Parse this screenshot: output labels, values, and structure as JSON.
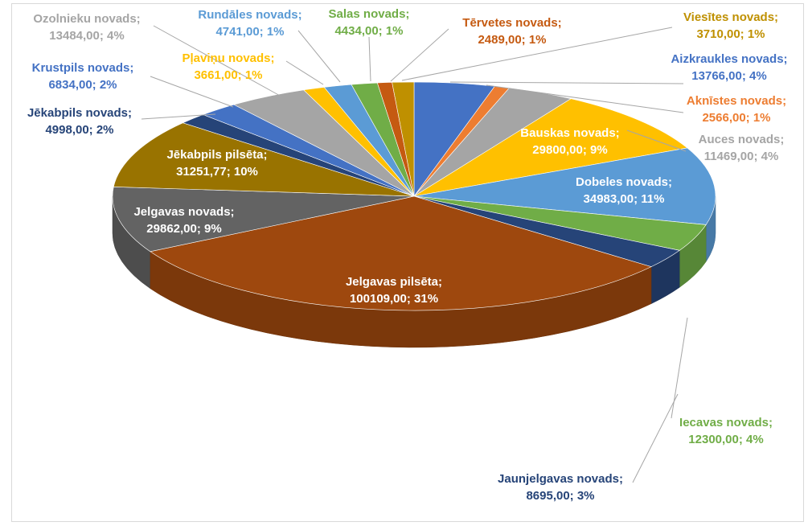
{
  "chart_data": {
    "type": "pie",
    "title": "",
    "slices": [
      {
        "name": "Aizkraukles novads",
        "value": 13766.0,
        "value_text": "13766,00",
        "percent_text": "4%",
        "color": "#4472c4",
        "label_color": "#4472c4"
      },
      {
        "name": "Aknīstes novads",
        "value": 2566.0,
        "value_text": "2566,00",
        "percent_text": "1%",
        "color": "#ed7d31",
        "label_color": "#ed7d31"
      },
      {
        "name": "Auces novads",
        "value": 11469.0,
        "value_text": "11469,00",
        "percent_text": "4%",
        "color": "#a5a5a5",
        "label_color": "#a5a5a5"
      },
      {
        "name": "Bauskas novads",
        "value": 29800.0,
        "value_text": "29800,00",
        "percent_text": "9%",
        "color": "#ffc000",
        "label_color": "#ffffff"
      },
      {
        "name": "Dobeles novads",
        "value": 34983.0,
        "value_text": "34983,00",
        "percent_text": "11%",
        "color": "#5b9bd5",
        "label_color": "#ffffff"
      },
      {
        "name": "Iecavas novads",
        "value": 12300.0,
        "value_text": "12300,00",
        "percent_text": "4%",
        "color": "#70ad47",
        "label_color": "#70ad47"
      },
      {
        "name": "Jaunjelgavas novads",
        "value": 8695.0,
        "value_text": "8695,00",
        "percent_text": "3%",
        "color": "#264478",
        "label_color": "#264478"
      },
      {
        "name": "Jelgavas pilsēta",
        "value": 100109.0,
        "value_text": "100109,00",
        "percent_text": "31%",
        "color": "#9e480e",
        "label_color": "#ffffff"
      },
      {
        "name": "Jelgavas novads",
        "value": 29862.0,
        "value_text": "29862,00",
        "percent_text": "9%",
        "color": "#636363",
        "label_color": "#ffffff"
      },
      {
        "name": "Jēkabpils pilsēta",
        "value": 31251.77,
        "value_text": "31251,77",
        "percent_text": "10%",
        "color": "#997300",
        "label_color": "#ffffff"
      },
      {
        "name": "Jēkabpils novads",
        "value": 4998.0,
        "value_text": "4998,00",
        "percent_text": "2%",
        "color": "#264478",
        "label_color": "#264478"
      },
      {
        "name": "Krustpils novads",
        "value": 6834.0,
        "value_text": "6834,00",
        "percent_text": "2%",
        "color": "#4472c4",
        "label_color": "#4472c4"
      },
      {
        "name": "Ozolnieku novads",
        "value": 13484.0,
        "value_text": "13484,00",
        "percent_text": "4%",
        "color": "#a5a5a5",
        "label_color": "#a5a5a5"
      },
      {
        "name": "Pļaviņu novads",
        "value": 3661.0,
        "value_text": "3661,00",
        "percent_text": "1%",
        "color": "#ffc000",
        "label_color": "#ffc000"
      },
      {
        "name": "Rundāles novads",
        "value": 4741.0,
        "value_text": "4741,00",
        "percent_text": "1%",
        "color": "#5b9bd5",
        "label_color": "#5b9bd5"
      },
      {
        "name": "Salas novads",
        "value": 4434.0,
        "value_text": "4434,00",
        "percent_text": "1%",
        "color": "#70ad47",
        "label_color": "#70ad47"
      },
      {
        "name": "Tērvetes novads",
        "value": 2489.0,
        "value_text": "2489,00",
        "percent_text": "1%",
        "color": "#c55a11",
        "label_color": "#c55a11"
      },
      {
        "name": "Viesītes novads",
        "value": 3710.0,
        "value_text": "3710,00",
        "percent_text": "1%",
        "color": "#bf9000",
        "label_color": "#bf9000"
      }
    ],
    "legend": "none",
    "data_labels": "name; value; percent"
  }
}
